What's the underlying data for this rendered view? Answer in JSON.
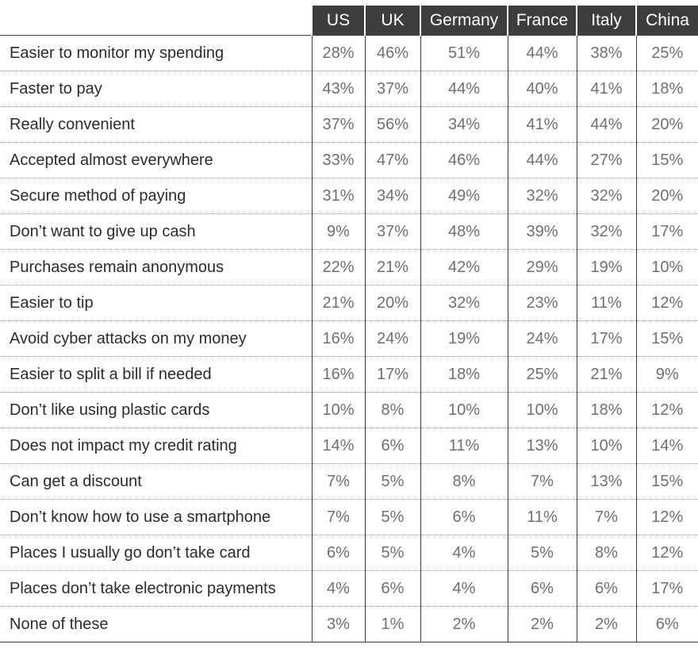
{
  "chart_data": {
    "type": "table",
    "columns": [
      "US",
      "UK",
      "Germany",
      "France",
      "Italy",
      "China"
    ],
    "rows": [
      {
        "label": "Easier to monitor my spending",
        "values": [
          "28%",
          "46%",
          "51%",
          "44%",
          "38%",
          "25%"
        ]
      },
      {
        "label": "Faster to pay",
        "values": [
          "43%",
          "37%",
          "44%",
          "40%",
          "41%",
          "18%"
        ]
      },
      {
        "label": "Really convenient",
        "values": [
          "37%",
          "56%",
          "34%",
          "41%",
          "44%",
          "20%"
        ]
      },
      {
        "label": "Accepted almost everywhere",
        "values": [
          "33%",
          "47%",
          "46%",
          "44%",
          "27%",
          "15%"
        ]
      },
      {
        "label": "Secure method of paying",
        "values": [
          "31%",
          "34%",
          "49%",
          "32%",
          "32%",
          "20%"
        ]
      },
      {
        "label": "Don’t want to give up cash",
        "values": [
          "9%",
          "37%",
          "48%",
          "39%",
          "32%",
          "17%"
        ]
      },
      {
        "label": "Purchases remain anonymous",
        "values": [
          "22%",
          "21%",
          "42%",
          "29%",
          "19%",
          "10%"
        ]
      },
      {
        "label": "Easier to tip",
        "values": [
          "21%",
          "20%",
          "32%",
          "23%",
          "11%",
          "12%"
        ]
      },
      {
        "label": "Avoid cyber attacks on my money",
        "values": [
          "16%",
          "24%",
          "19%",
          "24%",
          "17%",
          "15%"
        ]
      },
      {
        "label": "Easier to split a bill if needed",
        "values": [
          "16%",
          "17%",
          "18%",
          "25%",
          "21%",
          "9%"
        ]
      },
      {
        "label": "Don’t like using plastic cards",
        "values": [
          "10%",
          "8%",
          "10%",
          "10%",
          "18%",
          "12%"
        ]
      },
      {
        "label": "Does not impact my credit rating",
        "values": [
          "14%",
          "6%",
          "11%",
          "13%",
          "10%",
          "14%"
        ]
      },
      {
        "label": "Can get a discount",
        "values": [
          "7%",
          "5%",
          "8%",
          "7%",
          "13%",
          "15%"
        ]
      },
      {
        "label": "Don’t know how to use a smartphone",
        "values": [
          "7%",
          "5%",
          "6%",
          "11%",
          "7%",
          "12%"
        ]
      },
      {
        "label": "Places I usually go don’t take card",
        "values": [
          "6%",
          "5%",
          "4%",
          "5%",
          "8%",
          "12%"
        ]
      },
      {
        "label": "Places don’t take electronic payments",
        "values": [
          "4%",
          "6%",
          "4%",
          "6%",
          "6%",
          "17%"
        ]
      },
      {
        "label": "None of these",
        "values": [
          "3%",
          "1%",
          "2%",
          "2%",
          "2%",
          "6%"
        ]
      }
    ],
    "colors": {
      "header_bg": "#3d3d3d",
      "header_text": "#ffffff",
      "label_text": "#2b2b2b",
      "value_text": "#6f6f6f"
    }
  }
}
